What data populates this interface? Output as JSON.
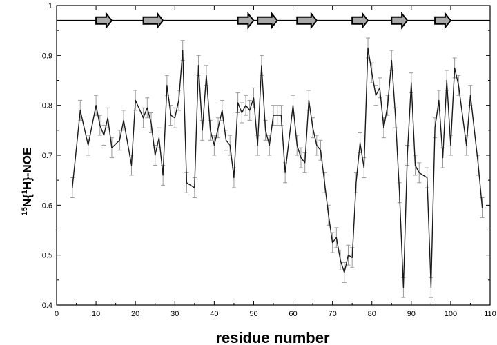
{
  "chart_data": {
    "type": "line",
    "xlabel": "residue number",
    "ylabel": {
      "base": "N{",
      "iso1": "15",
      "iso2": "1",
      "mid": "H}-NOE",
      "full": "15N{1H}-NOE"
    },
    "xlim": [
      0,
      110
    ],
    "ylim": [
      0.4,
      1.0
    ],
    "x_ticks": [
      0,
      10,
      20,
      30,
      40,
      50,
      60,
      70,
      80,
      90,
      100,
      110
    ],
    "y_ticks": [
      0.4,
      0.5,
      0.6,
      0.7,
      0.8,
      0.9,
      1
    ],
    "x_tick_labels": [
      "0",
      "10",
      "20",
      "30",
      "40",
      "50",
      "60",
      "70",
      "80",
      "90",
      "100",
      "110"
    ],
    "y_tick_labels": [
      "0.4",
      "0.5",
      "0.6",
      "0.7",
      "0.8",
      "0.9",
      "1"
    ],
    "grid": false,
    "series": [
      {
        "x": [
          4,
          6,
          8,
          10,
          11,
          12,
          13,
          14,
          16,
          17,
          19,
          20,
          22,
          23,
          24,
          25,
          26,
          27,
          28,
          29,
          30,
          31,
          32,
          33,
          35,
          36,
          37,
          38,
          39,
          40,
          41,
          42,
          43,
          44,
          45,
          46,
          47,
          48,
          49,
          50,
          51,
          52,
          53,
          54,
          55,
          56,
          57,
          58,
          60,
          61,
          62,
          63,
          64,
          65,
          66,
          67,
          68,
          69,
          70,
          71,
          72,
          73,
          74,
          75,
          76,
          77,
          78,
          79,
          80,
          81,
          82,
          83,
          84,
          85,
          86,
          87,
          88,
          89,
          90,
          91,
          92,
          94,
          95,
          96,
          97,
          98,
          99,
          100,
          101,
          102,
          104,
          105,
          107,
          108
        ],
        "y": [
          0.635,
          0.79,
          0.72,
          0.8,
          0.76,
          0.74,
          0.775,
          0.715,
          0.73,
          0.77,
          0.68,
          0.81,
          0.775,
          0.795,
          0.765,
          0.7,
          0.735,
          0.66,
          0.84,
          0.78,
          0.775,
          0.81,
          0.91,
          0.645,
          0.635,
          0.88,
          0.75,
          0.86,
          0.75,
          0.72,
          0.755,
          0.79,
          0.73,
          0.72,
          0.655,
          0.805,
          0.785,
          0.8,
          0.79,
          0.815,
          0.72,
          0.88,
          0.75,
          0.72,
          0.78,
          0.78,
          0.78,
          0.665,
          0.8,
          0.72,
          0.695,
          0.685,
          0.81,
          0.755,
          0.72,
          0.71,
          0.645,
          0.58,
          0.525,
          0.535,
          0.49,
          0.465,
          0.5,
          0.495,
          0.645,
          0.725,
          0.675,
          0.915,
          0.865,
          0.82,
          0.835,
          0.755,
          0.8,
          0.89,
          0.775,
          0.625,
          0.435,
          0.7,
          0.845,
          0.68,
          0.665,
          0.655,
          0.435,
          0.755,
          0.81,
          0.695,
          0.85,
          0.72,
          0.875,
          0.84,
          0.72,
          0.82,
          0.68,
          0.595
        ],
        "error": 0.02
      }
    ],
    "secondary_structure": {
      "line_value": 0.97,
      "strands": [
        {
          "start": 10,
          "end": 14
        },
        {
          "start": 22,
          "end": 27
        },
        {
          "start": 46,
          "end": 50
        },
        {
          "start": 51,
          "end": 56
        },
        {
          "start": 61,
          "end": 66
        },
        {
          "start": 75,
          "end": 79
        },
        {
          "start": 85,
          "end": 89
        },
        {
          "start": 96,
          "end": 100
        }
      ]
    },
    "colors": {
      "line": "#1a1a1a",
      "error_bars": "#9a9a9a",
      "arrow_fill": "#a8a8a8",
      "arrow_stroke": "#000000"
    }
  }
}
